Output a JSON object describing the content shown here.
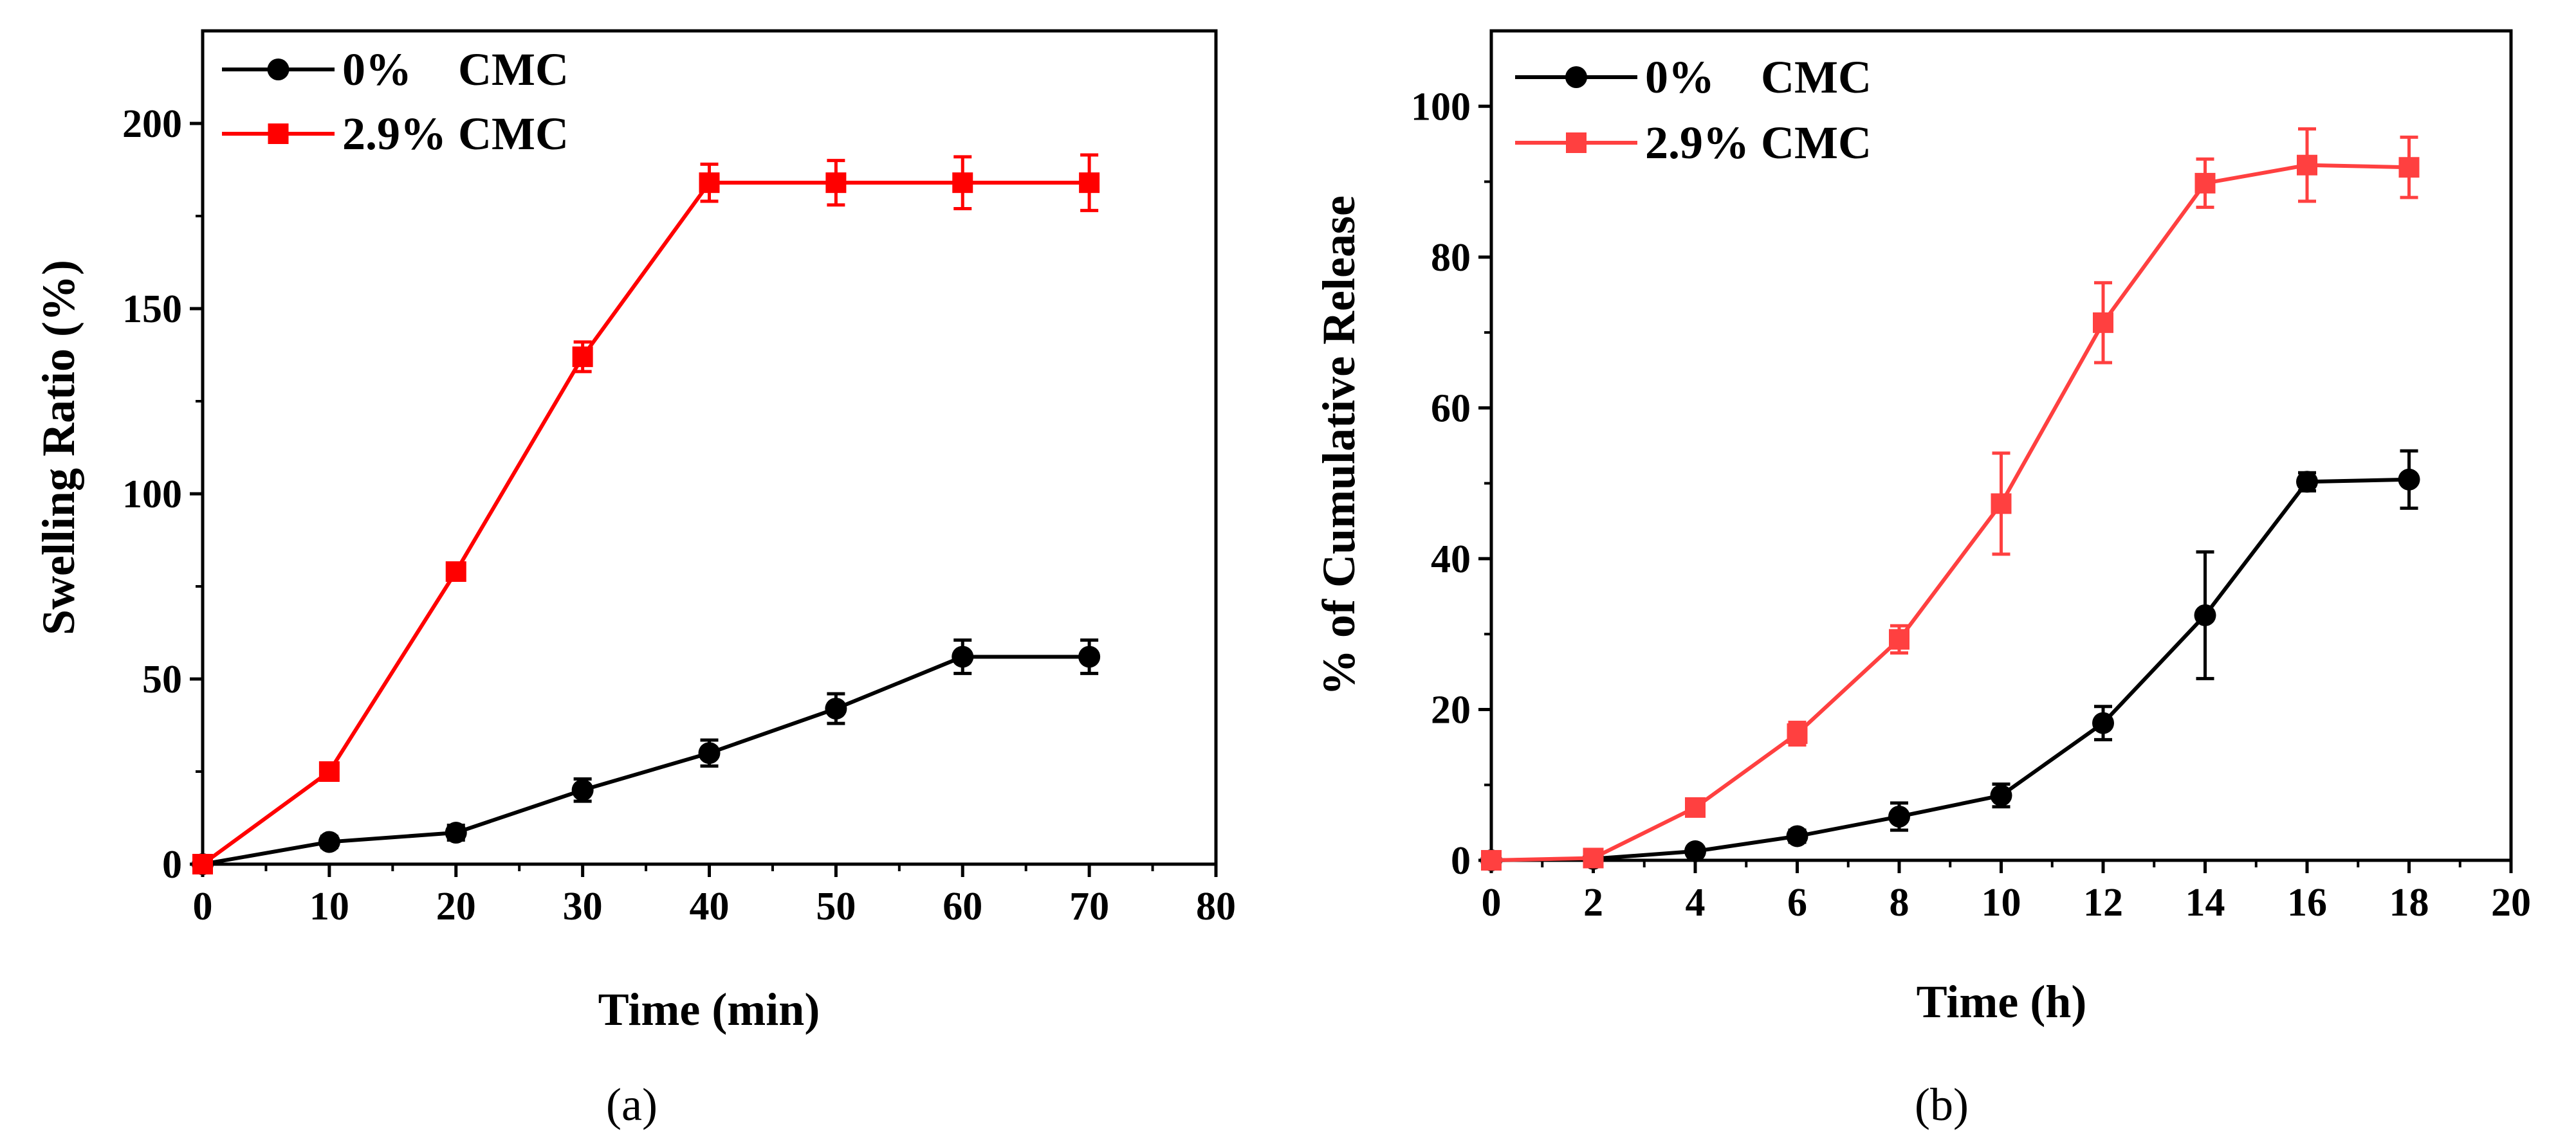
{
  "chart_data": [
    {
      "type": "line",
      "panel_label": "(a)",
      "title": "",
      "xlabel": "Time (min)",
      "ylabel": "Swelling Ratio (%)",
      "xlim": [
        0,
        80
      ],
      "ylim": [
        0,
        225
      ],
      "xticks": [
        "0",
        "10",
        "20",
        "30",
        "40",
        "50",
        "60",
        "70",
        "80"
      ],
      "yticks": [
        "0",
        "50",
        "100",
        "150",
        "200"
      ],
      "grid": false,
      "legend_position": "top-left",
      "series": [
        {
          "name": "0%    CMC",
          "color": "#000000",
          "marker": "circle",
          "x": [
            0,
            10,
            20,
            30,
            40,
            50,
            60,
            70
          ],
          "y": [
            0,
            6,
            8.5,
            20,
            30,
            42,
            56,
            56
          ],
          "error": [
            0,
            1.5,
            2,
            3,
            3.5,
            4,
            4.5,
            4.5
          ]
        },
        {
          "name": "2.9% CMC",
          "color": "#ff0000",
          "marker": "square",
          "x": [
            0,
            10,
            20,
            30,
            40,
            50,
            60,
            70
          ],
          "y": [
            0,
            25,
            79,
            137,
            184,
            184,
            184,
            184
          ],
          "error": [
            0,
            1,
            2,
            4,
            5,
            6,
            7,
            7.5
          ]
        }
      ]
    },
    {
      "type": "line",
      "panel_label": "(b)",
      "title": "",
      "xlabel": "Time (h)",
      "ylabel": "% of Cumulative Release",
      "xlim": [
        0,
        20
      ],
      "ylim": [
        0,
        110
      ],
      "xticks": [
        "0",
        "2",
        "4",
        "6",
        "8",
        "10",
        "12",
        "14",
        "16",
        "18",
        "20"
      ],
      "yticks": [
        "0",
        "20",
        "40",
        "60",
        "80",
        "100"
      ],
      "grid": false,
      "legend_position": "top-left",
      "series": [
        {
          "name": "0%    CMC",
          "color": "#000000",
          "marker": "circle",
          "x": [
            0,
            2,
            4,
            6,
            8,
            10,
            12,
            14,
            16,
            18
          ],
          "y": [
            0,
            0.2,
            1.2,
            3.2,
            5.8,
            8.6,
            18.2,
            32.5,
            50.2,
            50.5
          ],
          "error": [
            0,
            0.2,
            0.5,
            0.8,
            1.8,
            1.5,
            2.2,
            8.4,
            1.2,
            3.8
          ]
        },
        {
          "name": "2.9% CMC",
          "color": "#ff4040",
          "marker": "square",
          "x": [
            0,
            2,
            4,
            6,
            8,
            10,
            12,
            14,
            16,
            18
          ],
          "y": [
            0,
            0.3,
            7.0,
            16.8,
            29.3,
            47.3,
            71.3,
            89.8,
            92.2,
            91.9
          ],
          "error": [
            0,
            0.3,
            0.8,
            1.5,
            1.8,
            6.7,
            5.3,
            3.2,
            4.8,
            4.0
          ]
        }
      ]
    }
  ]
}
